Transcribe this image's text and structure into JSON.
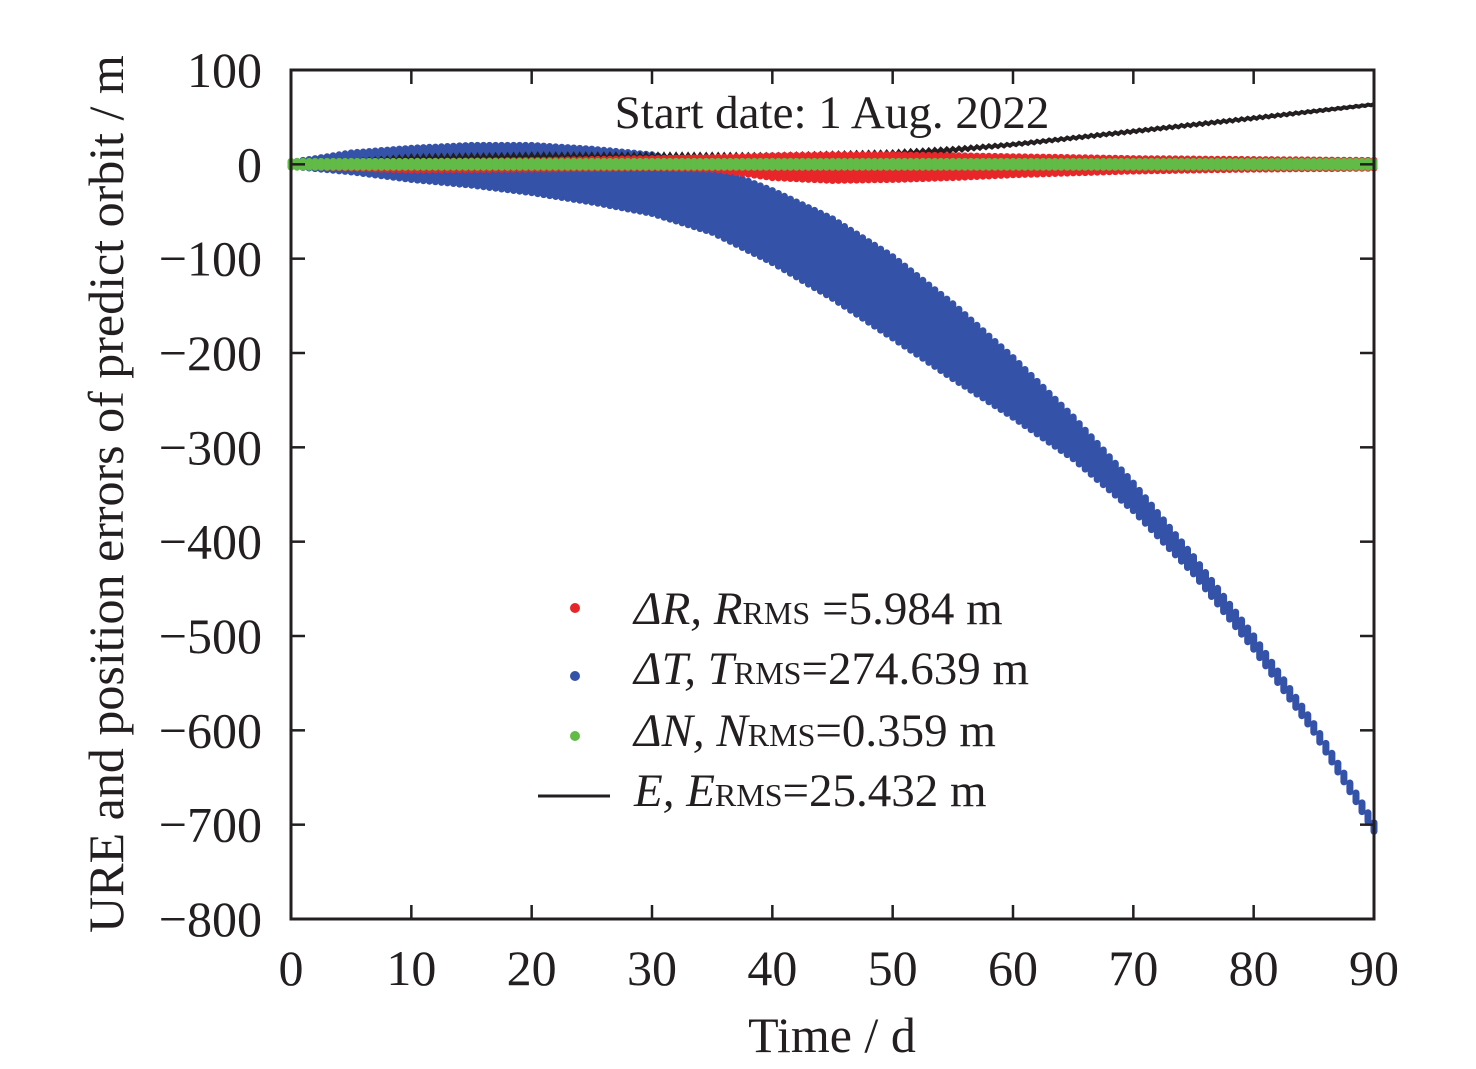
{
  "chart_data": {
    "type": "scatter",
    "title": "",
    "annotation": "Start date: 1 Aug. 2022",
    "xlabel": "Time / d",
    "ylabel": "URE and position errors of predict orbit / m",
    "xlim": [
      0,
      90
    ],
    "ylim": [
      -800,
      100
    ],
    "xticks": [
      0,
      10,
      20,
      30,
      40,
      50,
      60,
      70,
      80,
      90
    ],
    "yticks": [
      100,
      0,
      -100,
      -200,
      -300,
      -400,
      -500,
      -600,
      -700,
      -800
    ],
    "xtick_labels": [
      "0",
      "10",
      "20",
      "30",
      "40",
      "50",
      "60",
      "70",
      "80",
      "90"
    ],
    "ytick_labels": [
      "100",
      "0",
      "−100",
      "−200",
      "−300",
      "−400",
      "−500",
      "−600",
      "−700",
      "−800"
    ],
    "grid": false,
    "legend_position": "lower-center",
    "sample_period_days": 0.5,
    "series": [
      {
        "name": "ΔR",
        "legend": {
          "prefix": "ΔR, R",
          "sub": "RMS",
          "suffix": "=5.984 m"
        },
        "marker": "dot",
        "color": "#e8262a",
        "envelope": {
          "x": [
            0,
            10,
            20,
            30,
            35,
            40,
            45,
            50,
            55,
            60,
            70,
            80,
            90
          ],
          "upper": [
            0,
            1,
            2,
            4,
            5,
            7,
            8,
            8,
            7,
            6,
            4,
            3,
            2
          ],
          "lower": [
            0,
            -4,
            -3,
            -2,
            -3,
            -12,
            -15,
            -14,
            -12,
            -9,
            -5,
            -3,
            -2
          ]
        }
      },
      {
        "name": "ΔT",
        "legend": {
          "prefix": "ΔT, T",
          "sub": "RMS",
          "suffix": "=274.639 m"
        },
        "marker": "dot",
        "color": "#3452a8",
        "envelope": {
          "x": [
            0,
            5,
            10,
            15,
            20,
            25,
            30,
            35,
            40,
            45,
            50,
            55,
            60,
            65,
            70,
            75,
            80,
            85,
            90
          ],
          "upper": [
            0,
            10,
            15,
            18,
            18,
            14,
            8,
            -5,
            -30,
            -60,
            -100,
            -150,
            -207,
            -270,
            -340,
            -418,
            -502,
            -595,
            -700
          ],
          "lower": [
            0,
            -6,
            -14,
            -20,
            -28,
            -38,
            -50,
            -70,
            -102,
            -140,
            -182,
            -225,
            -266,
            -310,
            -365,
            -432,
            -512,
            -600,
            -705
          ]
        }
      },
      {
        "name": "ΔN",
        "legend": {
          "prefix": "ΔN, N",
          "sub": "RMS",
          "suffix": "=0.359 m"
        },
        "marker": "dot",
        "color": "#62bb46",
        "envelope": {
          "x": [
            0,
            30,
            60,
            90
          ],
          "upper": [
            1,
            1,
            1,
            1
          ],
          "lower": [
            -1,
            -1,
            -1,
            -1
          ]
        }
      },
      {
        "name": "E",
        "legend": {
          "prefix": "E, E",
          "sub": "RMS",
          "suffix": "=25.432 m"
        },
        "marker": "line",
        "color": "#231f20",
        "envelope": {
          "x": [
            0,
            10,
            20,
            30,
            40,
            50,
            55,
            60,
            70,
            80,
            90
          ],
          "upper": [
            0,
            8,
            10,
            10,
            10,
            13,
            17,
            22,
            36,
            50,
            64
          ],
          "lower": [
            0,
            3,
            5,
            5,
            6,
            9,
            14,
            20,
            34,
            48,
            63
          ]
        }
      }
    ]
  }
}
